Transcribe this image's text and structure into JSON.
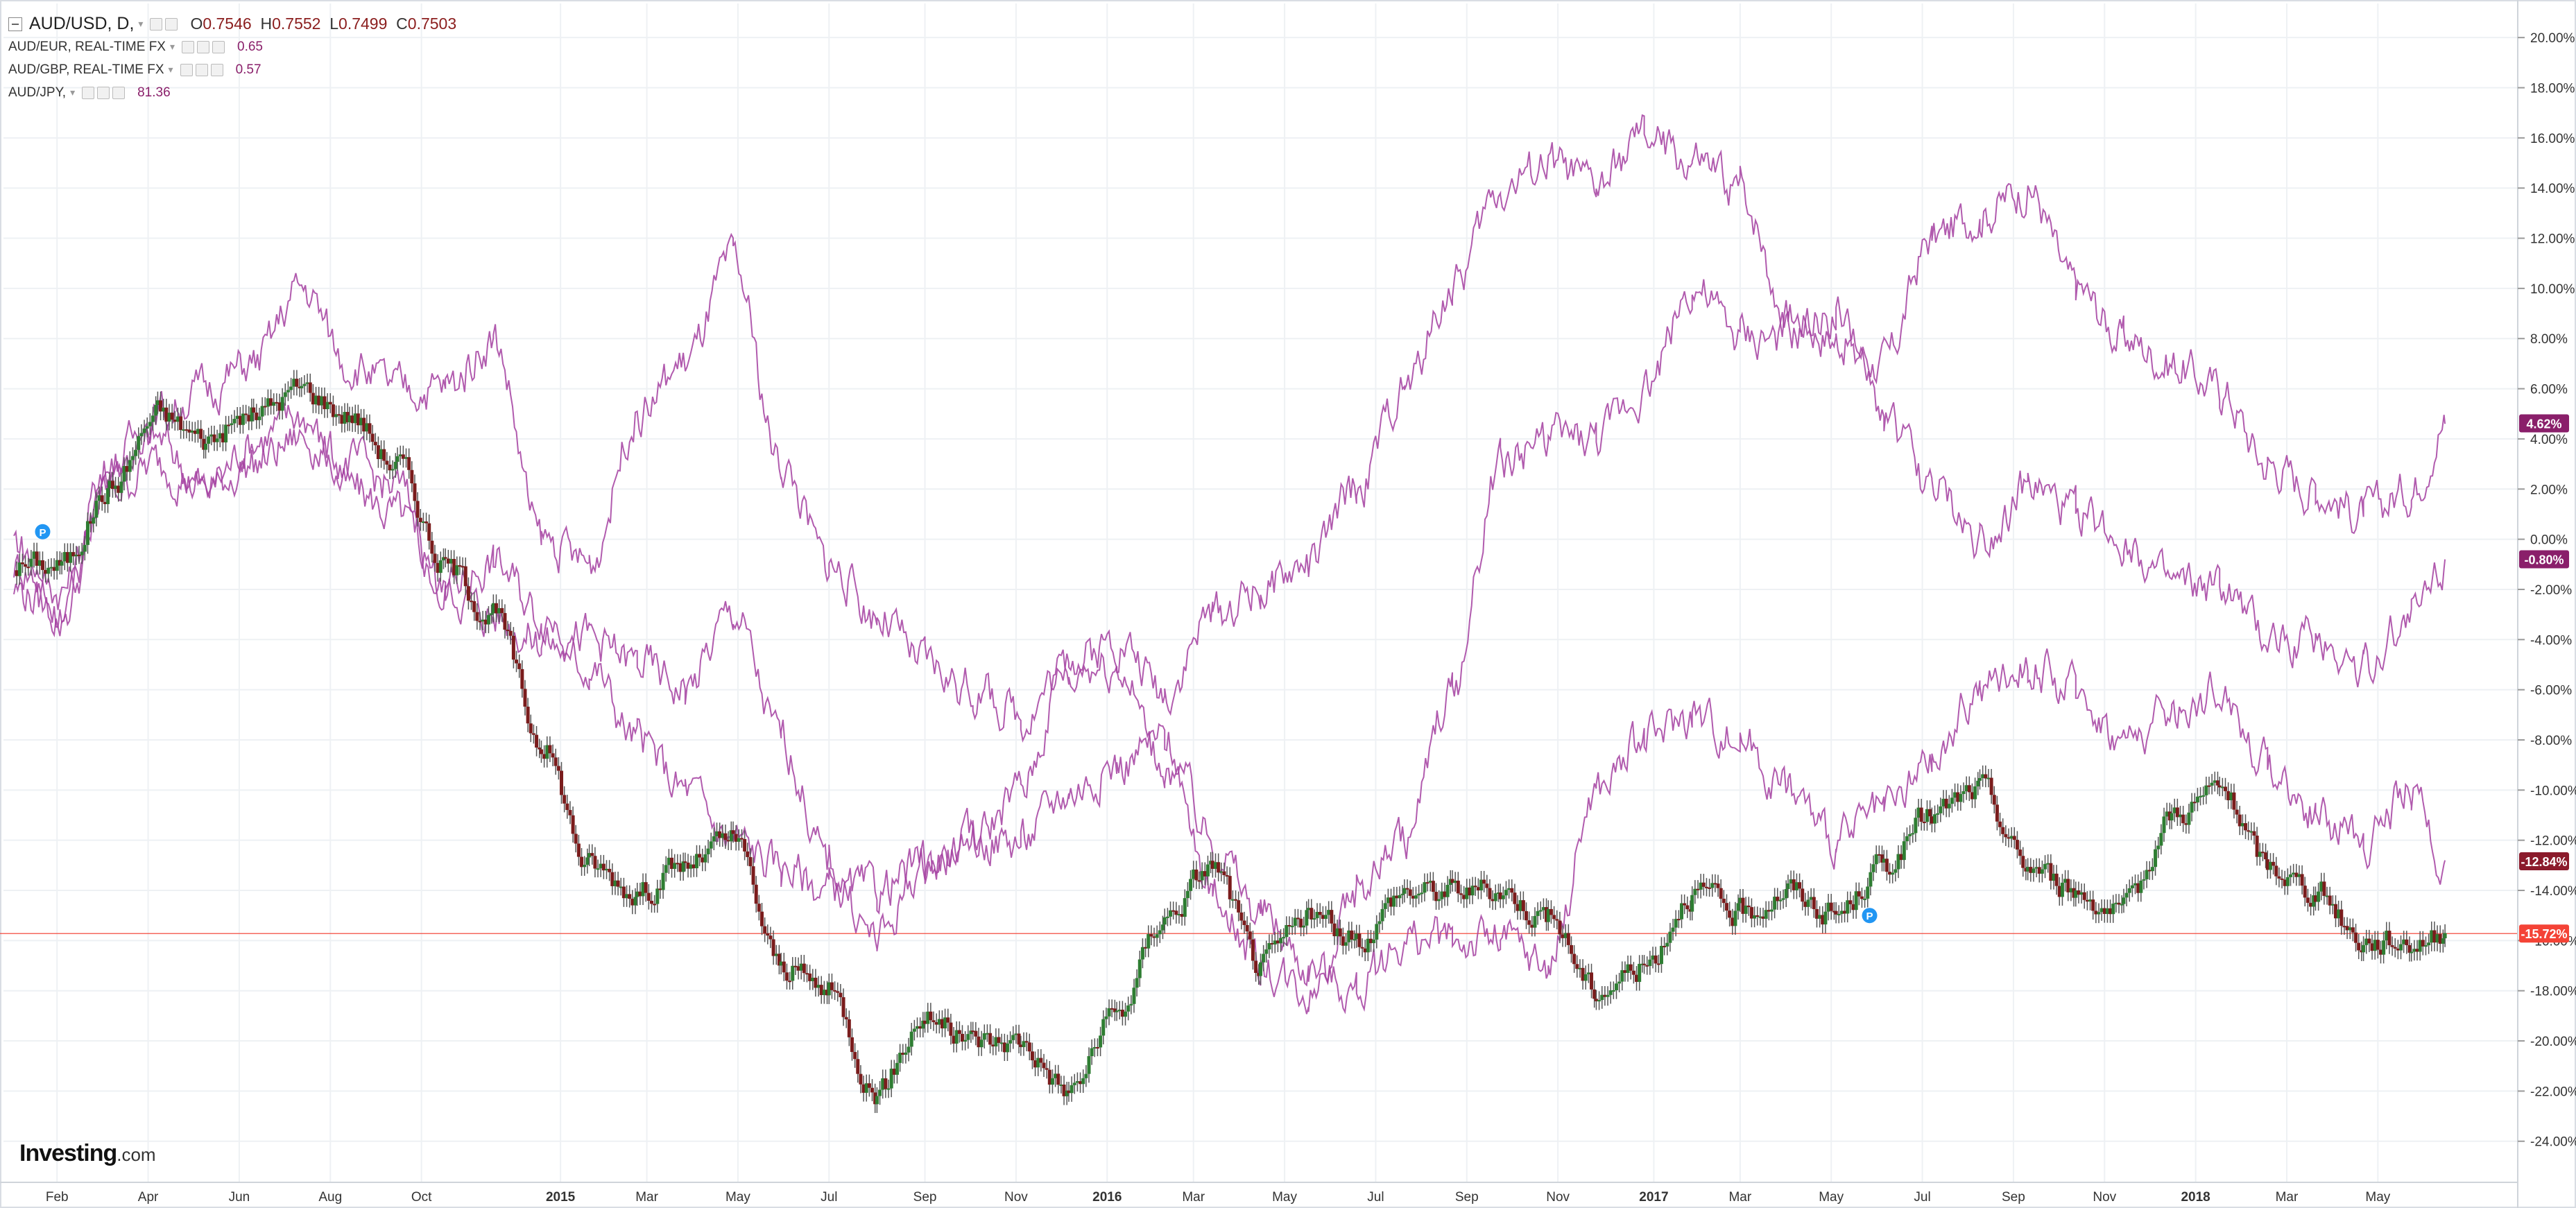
{
  "header": {
    "main_symbol": "AUD/USD, D,",
    "ohlc": [
      {
        "k": "O",
        "v": "0.7546"
      },
      {
        "k": "H",
        "v": "0.7552"
      },
      {
        "k": "L",
        "v": "0.7499"
      },
      {
        "k": "C",
        "v": "0.7503"
      }
    ],
    "comparisons": [
      {
        "symbol": "AUD/EUR, REAL-TIME FX",
        "value": "0.65"
      },
      {
        "symbol": "AUD/GBP, REAL-TIME FX",
        "value": "0.57"
      },
      {
        "symbol": "AUD/JPY,",
        "value": "81.36"
      }
    ]
  },
  "logo": {
    "brand": "Investing",
    "suffix": ".com"
  },
  "colors": {
    "up": "#2e7d32",
    "down": "#7a1c1c",
    "wick": "#555555",
    "compare_line": "#a33ea0",
    "price_line": "#f44336",
    "grid": "#eef1f4",
    "axis_text": "#333333"
  },
  "chart_data": {
    "type": "line",
    "x_tick_labels": [
      "Feb",
      "Apr",
      "Jun",
      "Aug",
      "Oct",
      "2015",
      "Mar",
      "May",
      "Jul",
      "Sep",
      "Nov",
      "2016",
      "Mar",
      "May",
      "Jul",
      "Sep",
      "Nov",
      "2017",
      "Mar",
      "May",
      "Jul",
      "Sep",
      "Nov",
      "2018",
      "Mar",
      "May"
    ],
    "y_tick_labels": [
      "20.00%",
      "18.00%",
      "16.00%",
      "14.00%",
      "12.00%",
      "10.00%",
      "8.00%",
      "6.00%",
      "4.00%",
      "2.00%",
      "0.00%",
      "-2.00%",
      "-4.00%",
      "-6.00%",
      "-8.00%",
      "-10.00%",
      "-12.00%",
      "-14.00%",
      "-16.00%",
      "-18.00%",
      "-20.00%",
      "-22.00%",
      "-24.00%"
    ],
    "ylim": [
      -25.5,
      21
    ],
    "x_range": [
      0,
      52
    ],
    "tick_positions": [
      0.9,
      2.8,
      4.7,
      6.6,
      8.5,
      11.4,
      13.2,
      15.1,
      17.0,
      19.0,
      20.9,
      22.8,
      24.6,
      26.5,
      28.4,
      30.3,
      32.2,
      34.2,
      36.0,
      37.9,
      39.8,
      41.7,
      43.6,
      45.5,
      47.4,
      49.3
    ],
    "price_line_value": -15.72,
    "last_value_tags": [
      {
        "label": "4.62%",
        "value": 4.62,
        "color": "#8a1f6a"
      },
      {
        "label": "-0.80%",
        "value": -0.8,
        "color": "#8a1f6a"
      },
      {
        "label": "-12.84%",
        "value": -12.84,
        "color": "#8b1a2b"
      },
      {
        "label": "-15.72%",
        "value": -15.72,
        "color": "#f44336"
      }
    ],
    "series": [
      {
        "name": "AUD/USD",
        "style": "candles",
        "x": [
          0,
          1,
          2,
          3,
          4,
          5,
          6,
          7,
          8,
          9,
          10,
          11,
          12,
          13,
          14,
          15,
          16,
          17,
          18,
          19,
          20,
          21,
          22,
          23,
          24,
          25,
          26,
          27,
          28,
          29,
          30,
          31,
          32,
          33,
          34,
          35,
          36,
          37,
          38,
          39,
          40,
          41,
          42,
          43,
          44,
          45,
          46,
          47,
          48,
          49,
          50,
          50.7
        ],
        "y": [
          -1,
          -1,
          2,
          5,
          4,
          5,
          6,
          5,
          3,
          -1,
          -3,
          -8,
          -13,
          -14,
          -13,
          -12,
          -17,
          -18,
          -22,
          -19,
          -20,
          -20,
          -22,
          -19,
          -15,
          -13,
          -17,
          -15,
          -16,
          -14,
          -14,
          -14,
          -15,
          -18,
          -17,
          -14,
          -15,
          -14,
          -15,
          -13,
          -11,
          -10,
          -13,
          -14,
          -15,
          -11,
          -10,
          -13,
          -14,
          -16,
          -16,
          -15.7
        ]
      },
      {
        "name": "AUD/EUR",
        "style": "line",
        "x": [
          0,
          1,
          2,
          3,
          4,
          5,
          6,
          7,
          8,
          9,
          10,
          11,
          12,
          13,
          14,
          15,
          16,
          17,
          18,
          19,
          20,
          21,
          22,
          23,
          24,
          25,
          26,
          27,
          28,
          29,
          30,
          31,
          32,
          33,
          34,
          35,
          36,
          37,
          38,
          39,
          40,
          41,
          42,
          43,
          44,
          45,
          46,
          47,
          48,
          49,
          50,
          50.7
        ],
        "y": [
          -1,
          -2,
          3,
          4,
          2,
          4,
          5,
          2,
          1,
          -2,
          -3,
          -4,
          -5,
          -8,
          -10,
          -12,
          -13,
          -14,
          -14,
          -13,
          -12,
          -12,
          -10,
          -9,
          -8,
          -12,
          -15,
          -17,
          -18,
          -16,
          -16,
          -16,
          -17,
          -10,
          -8,
          -7,
          -8,
          -10,
          -12,
          -11,
          -9,
          -6,
          -5,
          -6,
          -8,
          -7,
          -6,
          -9,
          -11,
          -12,
          -10,
          -12.8
        ]
      },
      {
        "name": "AUD/GBP",
        "style": "line",
        "x": [
          0,
          1,
          2,
          3,
          4,
          5,
          6,
          7,
          8,
          9,
          10,
          11,
          12,
          13,
          14,
          15,
          16,
          17,
          18,
          19,
          20,
          21,
          22,
          23,
          24,
          25,
          26,
          27,
          28,
          29,
          30,
          31,
          32,
          33,
          34,
          35,
          36,
          37,
          38,
          39,
          40,
          41,
          42,
          43,
          44,
          45,
          46,
          47,
          48,
          49,
          50,
          50.7
        ],
        "y": [
          -2,
          -3,
          2,
          3,
          2,
          3,
          4,
          3,
          2,
          -2,
          -1,
          -3,
          -4,
          -5,
          -6,
          -3,
          -8,
          -13,
          -16,
          -13,
          -12,
          -10,
          -5,
          -5,
          -9,
          -14,
          -17,
          -18,
          -14,
          -12,
          -6,
          3,
          4,
          4,
          6,
          10,
          8,
          8,
          9,
          5,
          2,
          0,
          2,
          1,
          0,
          -2,
          -2,
          -4,
          -4,
          -5,
          -3,
          -0.8
        ]
      },
      {
        "name": "AUD/JPY",
        "style": "line",
        "x": [
          0,
          1,
          2,
          3,
          4,
          5,
          6,
          7,
          8,
          9,
          10,
          11,
          12,
          13,
          14,
          15,
          16,
          17,
          18,
          19,
          20,
          21,
          22,
          23,
          24,
          25,
          26,
          27,
          28,
          29,
          30,
          31,
          32,
          33,
          34,
          35,
          36,
          37,
          38,
          39,
          40,
          41,
          42,
          43,
          44,
          45,
          46,
          47,
          48,
          49,
          50,
          50.7
        ],
        "y": [
          0,
          -3,
          3,
          5,
          6,
          7,
          10,
          7,
          6,
          6,
          8,
          0,
          -1,
          5,
          7,
          11,
          3,
          -1,
          -3,
          -5,
          -6,
          -7,
          -5,
          -4,
          -6,
          -3,
          -2,
          -1,
          2,
          6,
          10,
          14,
          15,
          14,
          16,
          15,
          14,
          9,
          8,
          7,
          12,
          13,
          14,
          10,
          8,
          7,
          6,
          3,
          2,
          1,
          2,
          4.6
        ]
      }
    ]
  }
}
